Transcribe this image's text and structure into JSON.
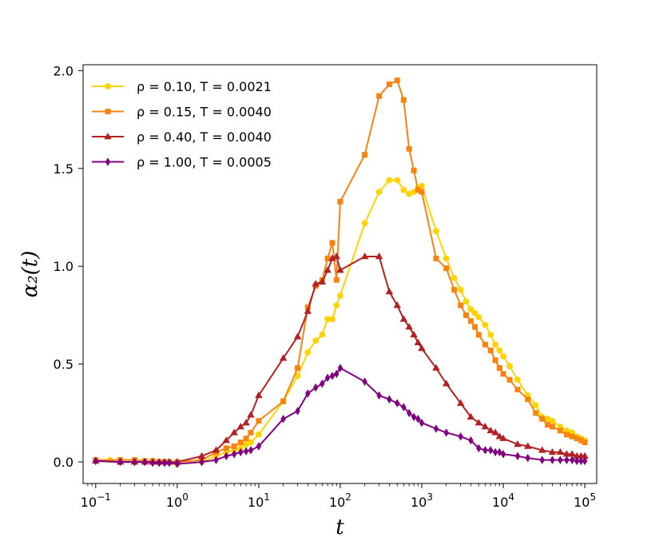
{
  "chart_data": {
    "type": "line",
    "title": "",
    "xlabel": "t",
    "ylabel": "α₂(t)",
    "xscale": "log",
    "xlim": [
      0.07,
      140000
    ],
    "ylim": [
      -0.11,
      2.03
    ],
    "xticks": [
      {
        "value": 0.1,
        "base": "10",
        "exp": "−1"
      },
      {
        "value": 1,
        "base": "10",
        "exp": "0"
      },
      {
        "value": 10,
        "base": "10",
        "exp": "1"
      },
      {
        "value": 100,
        "base": "10",
        "exp": "2"
      },
      {
        "value": 1000,
        "base": "10",
        "exp": "3"
      },
      {
        "value": 10000,
        "base": "10",
        "exp": "4"
      },
      {
        "value": 100000,
        "base": "10",
        "exp": "5"
      }
    ],
    "yticks": [
      {
        "value": 0.0,
        "label": "0.0"
      },
      {
        "value": 0.5,
        "label": "0.5"
      },
      {
        "value": 1.0,
        "label": "1.0"
      },
      {
        "value": 1.5,
        "label": "1.5"
      },
      {
        "value": 2.0,
        "label": "2.0"
      }
    ],
    "grid": false,
    "legend_position": "top-left",
    "series": [
      {
        "label": "ρ = 0.10, T = 0.0021",
        "color": "#FFD300",
        "marker": "circle",
        "points": [
          [
            0.1,
            0.01
          ],
          [
            0.15,
            0.01
          ],
          [
            0.2,
            0.01
          ],
          [
            0.3,
            0.01
          ],
          [
            0.4,
            0.005
          ],
          [
            0.5,
            0.005
          ],
          [
            0.6,
            0.0
          ],
          [
            0.7,
            0.0
          ],
          [
            0.8,
            0.0
          ],
          [
            1,
            -0.01
          ],
          [
            2,
            0.0
          ],
          [
            3,
            0.03
          ],
          [
            4,
            0.05
          ],
          [
            5,
            0.06
          ],
          [
            6,
            0.07
          ],
          [
            7,
            0.09
          ],
          [
            8,
            0.1
          ],
          [
            10,
            0.14
          ],
          [
            20,
            0.31
          ],
          [
            30,
            0.44
          ],
          [
            40,
            0.56
          ],
          [
            50,
            0.62
          ],
          [
            60,
            0.65
          ],
          [
            70,
            0.73
          ],
          [
            80,
            0.73
          ],
          [
            90,
            0.8
          ],
          [
            100,
            0.85
          ],
          [
            200,
            1.22
          ],
          [
            300,
            1.38
          ],
          [
            400,
            1.44
          ],
          [
            500,
            1.44
          ],
          [
            600,
            1.39
          ],
          [
            700,
            1.37
          ],
          [
            800,
            1.38
          ],
          [
            900,
            1.4
          ],
          [
            1000,
            1.41
          ],
          [
            1500,
            1.18
          ],
          [
            2000,
            1.04
          ],
          [
            2500,
            0.94
          ],
          [
            3000,
            0.88
          ],
          [
            3500,
            0.82
          ],
          [
            4000,
            0.78
          ],
          [
            4500,
            0.76
          ],
          [
            5000,
            0.74
          ],
          [
            6000,
            0.7
          ],
          [
            7000,
            0.65
          ],
          [
            8000,
            0.6
          ],
          [
            9000,
            0.57
          ],
          [
            10000,
            0.54
          ],
          [
            12000,
            0.49
          ],
          [
            15000,
            0.42
          ],
          [
            20000,
            0.34
          ],
          [
            25000,
            0.29
          ],
          [
            30000,
            0.23
          ],
          [
            35000,
            0.22
          ],
          [
            40000,
            0.21
          ],
          [
            50000,
            0.18
          ],
          [
            60000,
            0.16
          ],
          [
            70000,
            0.15
          ],
          [
            80000,
            0.13
          ],
          [
            90000,
            0.12
          ],
          [
            100000,
            0.11
          ]
        ]
      },
      {
        "label": "ρ = 0.15, T = 0.0040",
        "color": "#F78311",
        "marker": "square",
        "points": [
          [
            0.1,
            0.01
          ],
          [
            0.2,
            0.01
          ],
          [
            0.3,
            0.01
          ],
          [
            0.4,
            0.005
          ],
          [
            0.5,
            0.005
          ],
          [
            0.6,
            0.0
          ],
          [
            0.7,
            0.0
          ],
          [
            0.8,
            0.0
          ],
          [
            1,
            0.0
          ],
          [
            2,
            0.01
          ],
          [
            3,
            0.05
          ],
          [
            4,
            0.07
          ],
          [
            5,
            0.08
          ],
          [
            6,
            0.1
          ],
          [
            7,
            0.12
          ],
          [
            8,
            0.15
          ],
          [
            10,
            0.21
          ],
          [
            20,
            0.31
          ],
          [
            30,
            0.48
          ],
          [
            40,
            0.79
          ],
          [
            50,
            0.9
          ],
          [
            60,
            0.93
          ],
          [
            70,
            1.04
          ],
          [
            80,
            1.12
          ],
          [
            90,
            0.93
          ],
          [
            100,
            1.33
          ],
          [
            200,
            1.57
          ],
          [
            300,
            1.87
          ],
          [
            400,
            1.93
          ],
          [
            500,
            1.95
          ],
          [
            600,
            1.85
          ],
          [
            700,
            1.6
          ],
          [
            800,
            1.49
          ],
          [
            900,
            1.39
          ],
          [
            1000,
            1.38
          ],
          [
            1500,
            1.04
          ],
          [
            2000,
            0.99
          ],
          [
            2500,
            0.88
          ],
          [
            3000,
            0.8
          ],
          [
            3500,
            0.75
          ],
          [
            4000,
            0.72
          ],
          [
            4500,
            0.69
          ],
          [
            5000,
            0.65
          ],
          [
            6000,
            0.6
          ],
          [
            7000,
            0.57
          ],
          [
            8000,
            0.52
          ],
          [
            9000,
            0.48
          ],
          [
            10000,
            0.45
          ],
          [
            12000,
            0.42
          ],
          [
            15000,
            0.37
          ],
          [
            20000,
            0.32
          ],
          [
            25000,
            0.25
          ],
          [
            30000,
            0.22
          ],
          [
            35000,
            0.19
          ],
          [
            40000,
            0.18
          ],
          [
            50000,
            0.16
          ],
          [
            60000,
            0.14
          ],
          [
            70000,
            0.13
          ],
          [
            80000,
            0.12
          ],
          [
            90000,
            0.11
          ],
          [
            100000,
            0.1
          ]
        ]
      },
      {
        "label": "ρ = 0.40, T = 0.0040",
        "color": "#B22222",
        "marker": "triangle",
        "points": [
          [
            0.1,
            0.005
          ],
          [
            0.2,
            0.0
          ],
          [
            0.3,
            0.0
          ],
          [
            0.4,
            0.0
          ],
          [
            0.5,
            0.0
          ],
          [
            0.6,
            0.0
          ],
          [
            0.7,
            0.0
          ],
          [
            0.8,
            0.0
          ],
          [
            1,
            0.0
          ],
          [
            2,
            0.03
          ],
          [
            3,
            0.06
          ],
          [
            4,
            0.11
          ],
          [
            5,
            0.15
          ],
          [
            6,
            0.18
          ],
          [
            7,
            0.2
          ],
          [
            8,
            0.24
          ],
          [
            10,
            0.34
          ],
          [
            20,
            0.53
          ],
          [
            30,
            0.64
          ],
          [
            40,
            0.77
          ],
          [
            50,
            0.91
          ],
          [
            60,
            0.92
          ],
          [
            70,
            0.98
          ],
          [
            80,
            1.04
          ],
          [
            90,
            1.05
          ],
          [
            100,
            0.98
          ],
          [
            200,
            1.05
          ],
          [
            300,
            1.05
          ],
          [
            400,
            0.87
          ],
          [
            500,
            0.8
          ],
          [
            600,
            0.73
          ],
          [
            700,
            0.69
          ],
          [
            800,
            0.65
          ],
          [
            900,
            0.61
          ],
          [
            1000,
            0.58
          ],
          [
            1500,
            0.48
          ],
          [
            2000,
            0.4
          ],
          [
            3000,
            0.3
          ],
          [
            4000,
            0.23
          ],
          [
            5000,
            0.2
          ],
          [
            6000,
            0.18
          ],
          [
            7000,
            0.16
          ],
          [
            8000,
            0.15
          ],
          [
            9000,
            0.13
          ],
          [
            10000,
            0.12
          ],
          [
            15000,
            0.09
          ],
          [
            20000,
            0.08
          ],
          [
            30000,
            0.06
          ],
          [
            40000,
            0.05
          ],
          [
            50000,
            0.05
          ],
          [
            60000,
            0.04
          ],
          [
            70000,
            0.04
          ],
          [
            80000,
            0.03
          ],
          [
            90000,
            0.03
          ],
          [
            100000,
            0.03
          ]
        ]
      },
      {
        "label": "ρ = 1.00, T = 0.0005",
        "color": "#800080",
        "marker": "diamond",
        "points": [
          [
            0.1,
            0.005
          ],
          [
            0.2,
            0.0
          ],
          [
            0.3,
            0.0
          ],
          [
            0.4,
            0.0
          ],
          [
            0.5,
            -0.005
          ],
          [
            0.6,
            -0.005
          ],
          [
            0.7,
            -0.005
          ],
          [
            0.8,
            -0.005
          ],
          [
            1,
            -0.01
          ],
          [
            2,
            0.0
          ],
          [
            3,
            0.01
          ],
          [
            4,
            0.03
          ],
          [
            5,
            0.04
          ],
          [
            6,
            0.05
          ],
          [
            7,
            0.055
          ],
          [
            8,
            0.06
          ],
          [
            10,
            0.08
          ],
          [
            20,
            0.22
          ],
          [
            30,
            0.26
          ],
          [
            40,
            0.35
          ],
          [
            50,
            0.38
          ],
          [
            60,
            0.4
          ],
          [
            70,
            0.43
          ],
          [
            80,
            0.44
          ],
          [
            90,
            0.45
          ],
          [
            100,
            0.48
          ],
          [
            200,
            0.41
          ],
          [
            300,
            0.34
          ],
          [
            400,
            0.32
          ],
          [
            500,
            0.3
          ],
          [
            600,
            0.28
          ],
          [
            700,
            0.25
          ],
          [
            800,
            0.23
          ],
          [
            900,
            0.22
          ],
          [
            1000,
            0.2
          ],
          [
            1500,
            0.17
          ],
          [
            2000,
            0.15
          ],
          [
            3000,
            0.13
          ],
          [
            4000,
            0.11
          ],
          [
            5000,
            0.07
          ],
          [
            6000,
            0.06
          ],
          [
            7000,
            0.06
          ],
          [
            8000,
            0.05
          ],
          [
            9000,
            0.05
          ],
          [
            10000,
            0.04
          ],
          [
            15000,
            0.03
          ],
          [
            20000,
            0.02
          ],
          [
            30000,
            0.01
          ],
          [
            40000,
            0.01
          ],
          [
            50000,
            0.01
          ],
          [
            60000,
            0.01
          ],
          [
            70000,
            0.01
          ],
          [
            80000,
            0.005
          ],
          [
            90000,
            0.005
          ],
          [
            100000,
            0.005
          ]
        ]
      }
    ]
  }
}
